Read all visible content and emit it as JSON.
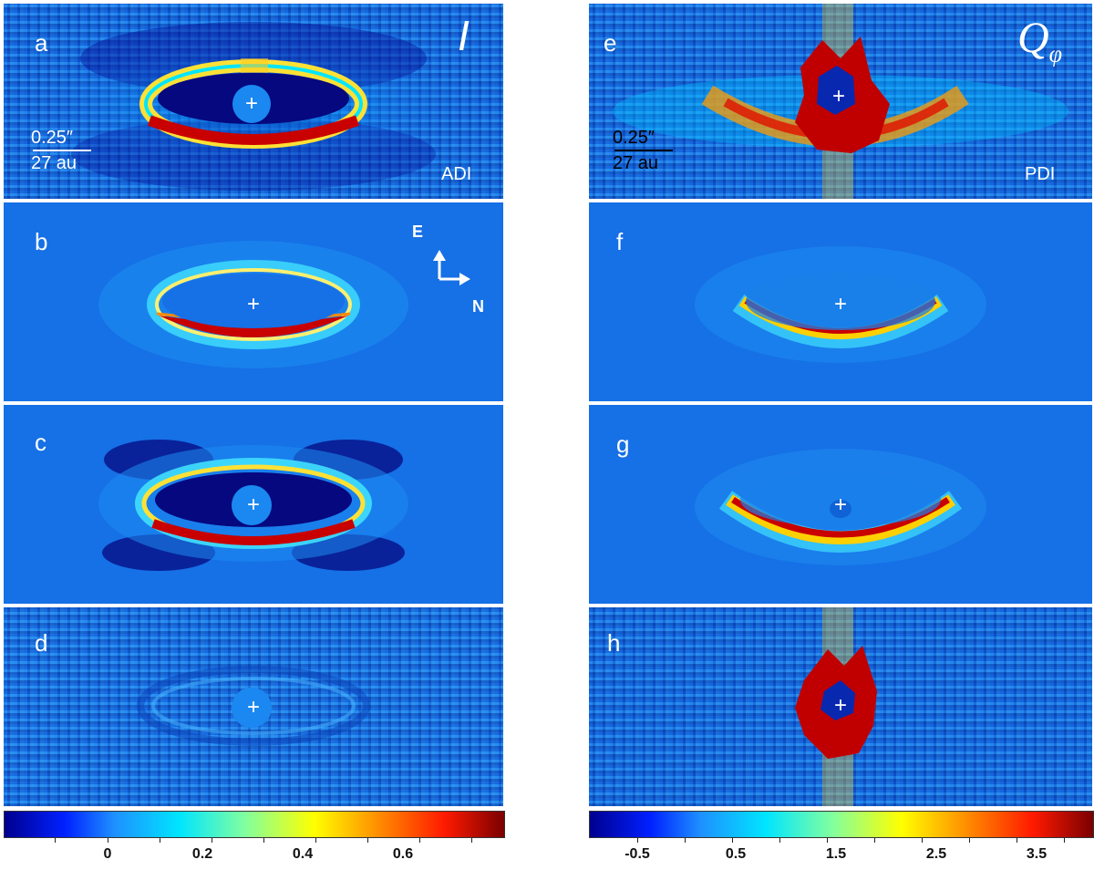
{
  "panels": {
    "a": {
      "label": "a",
      "corner_title": "I",
      "method": "ADI"
    },
    "b": {
      "label": "b"
    },
    "c": {
      "label": "c"
    },
    "d": {
      "label": "d"
    },
    "e": {
      "label": "e",
      "corner_title": "Q",
      "corner_sub": "φ",
      "method": "PDI"
    },
    "f": {
      "label": "f"
    },
    "g": {
      "label": "g"
    },
    "h": {
      "label": "h"
    }
  },
  "scale_bar": {
    "angular": "0.25″",
    "physical": "27 au"
  },
  "compass": {
    "east": "E",
    "north": "N"
  },
  "star_marker": "+",
  "colorbar_left": {
    "ticks": [
      "0",
      "0.2",
      "0.4",
      "0.6"
    ]
  },
  "colorbar_right": {
    "ticks": [
      "-0.5",
      "0.5",
      "1.5",
      "2.5",
      "3.5"
    ]
  }
}
